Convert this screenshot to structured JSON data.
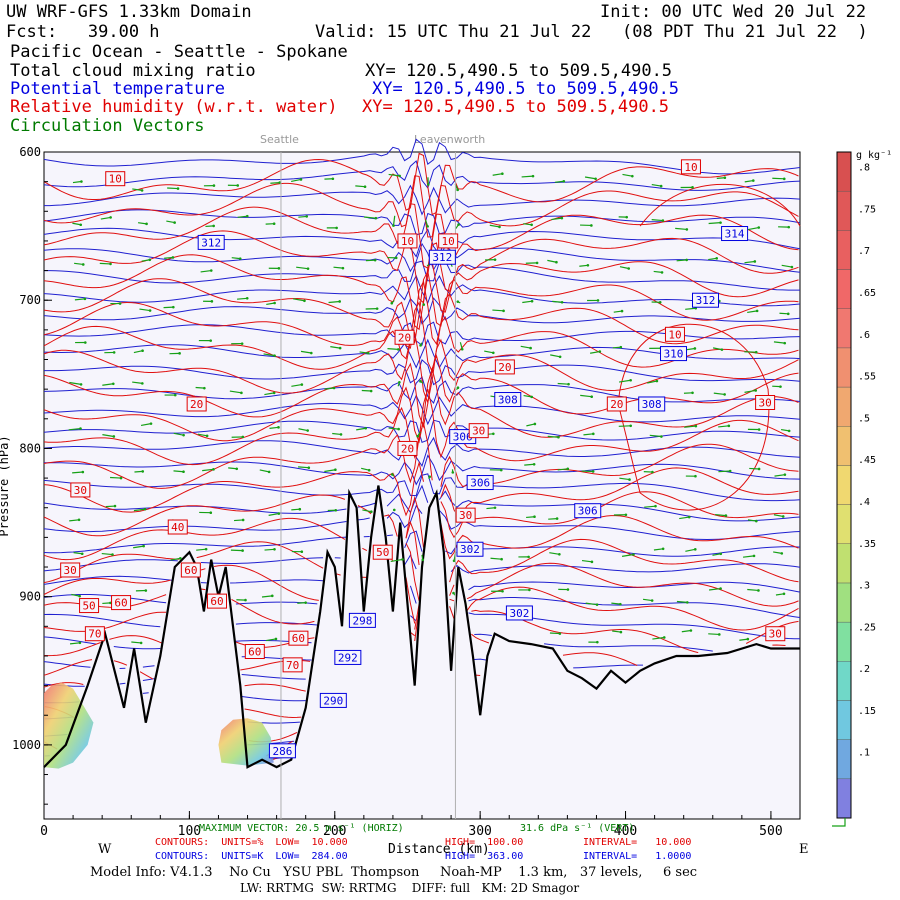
{
  "header": {
    "line1_left": "UW WRF-GFS 1.33km Domain",
    "line1_right": "Init: 00 UTC Wed 20 Jul 22",
    "line2_fcst": "Fcst:   39.00 h",
    "line2_valid": "Valid: 15 UTC Thu 21 Jul 22   (08 PDT Thu 21 Jul 22  )",
    "line3": "Pacific Ocean - Seattle - Spokane",
    "fields": [
      {
        "label": "Total cloud mixing ratio",
        "xy": "XY= 120.5,490.5 to 509.5,490.5",
        "color": "#000000"
      },
      {
        "label": "Potential temperature",
        "xy": "XY= 120.5,490.5 to 509.5,490.5",
        "color": "#0000e0"
      },
      {
        "label": "Relative humidity (w.r.t. water)",
        "xy": "XY= 120.5,490.5 to 509.5,490.5",
        "color": "#e00000"
      },
      {
        "label": "Circulation Vectors",
        "xy": "",
        "color": "#007a00"
      }
    ]
  },
  "locations": {
    "seattle": "Seattle",
    "leavenworth": "Leavenworth"
  },
  "footer": {
    "max_vector": "MAXIMUM VECTOR: 20.5 m s⁻¹ (HORIZ)",
    "max_vector_vert": "31.6 dPa s⁻¹ (VERT)",
    "rh_contours": "CONTOURS:  UNITS=%  LOW=  10.000",
    "rh_high": "HIGH=  100.00",
    "rh_interval": "INTERVAL=   10.000",
    "th_contours": "CONTOURS:  UNITS=K  LOW=  284.00",
    "th_high": "HIGH=  363.00",
    "th_interval": "INTERVAL=   1.0000",
    "west": "W",
    "east": "E",
    "model_info": "Model Info: V4.1.3    No Cu   YSU PBL  Thompson     Noah-MP    1.3 km,   37 levels,     6 sec",
    "model_info2": "LW: RRTMG  SW: RRTMG    DIFF: full   KM: 2D Smagor"
  },
  "chart_data": {
    "type": "cross-section",
    "xlabel": "Distance (km)",
    "ylabel": "Pressure (hPa)",
    "xlim": [
      0,
      520
    ],
    "ylim": [
      1050,
      600
    ],
    "x_ticks": [
      0,
      100,
      200,
      300,
      400,
      500
    ],
    "y_ticks": [
      600,
      700,
      800,
      900,
      1000
    ],
    "x_tick_labels": [
      "0",
      "100",
      "200",
      "300",
      "400",
      "500"
    ],
    "y_tick_labels": [
      "600",
      "700",
      "800",
      "900",
      "1000"
    ],
    "colorbar": {
      "units": "g kg⁻¹",
      "levels": [
        0.05,
        0.1,
        0.15,
        0.2,
        0.25,
        0.3,
        0.35,
        0.4,
        0.45,
        0.5,
        0.55,
        0.6,
        0.65,
        0.7,
        0.75,
        0.8
      ],
      "labels": [
        ".1",
        ".15",
        ".2",
        ".25",
        ".3",
        ".35",
        ".4",
        ".45",
        ".5",
        ".55",
        ".6",
        ".65",
        ".7",
        ".75",
        ".8"
      ]
    },
    "reference_lines": [
      {
        "name": "Seattle",
        "x": 163
      },
      {
        "name": "Leavenworth",
        "x": 283
      }
    ],
    "terrain_x": [
      0,
      15,
      30,
      42,
      55,
      62,
      70,
      80,
      90,
      100,
      105,
      110,
      115,
      120,
      125,
      135,
      140,
      150,
      160,
      170,
      180,
      190,
      195,
      200,
      205,
      210,
      215,
      220,
      225,
      230,
      235,
      240,
      245,
      250,
      255,
      260,
      265,
      270,
      275,
      280,
      285,
      290,
      295,
      300,
      305,
      310,
      320,
      335,
      350,
      360,
      370,
      380,
      390,
      400,
      410,
      420,
      435,
      450,
      470,
      490,
      500,
      510,
      520
    ],
    "terrain_hpa": [
      1015,
      1000,
      960,
      925,
      975,
      935,
      985,
      940,
      880,
      870,
      880,
      910,
      875,
      900,
      880,
      960,
      1015,
      1010,
      1015,
      1010,
      975,
      910,
      870,
      880,
      920,
      830,
      840,
      910,
      860,
      825,
      860,
      910,
      850,
      905,
      960,
      880,
      840,
      830,
      870,
      950,
      880,
      905,
      940,
      980,
      940,
      925,
      930,
      932,
      935,
      950,
      955,
      962,
      950,
      958,
      950,
      945,
      940,
      940,
      938,
      932,
      935,
      935,
      935
    ],
    "theta_contour_labels": [
      {
        "value": "312",
        "x": 115,
        "hpa": 661
      },
      {
        "value": "312",
        "x": 274,
        "hpa": 671
      },
      {
        "value": "312",
        "x": 455,
        "hpa": 700
      },
      {
        "value": "314",
        "x": 475,
        "hpa": 655
      },
      {
        "value": "310",
        "x": 433,
        "hpa": 736
      },
      {
        "value": "308",
        "x": 319,
        "hpa": 767
      },
      {
        "value": "308",
        "x": 418,
        "hpa": 770
      },
      {
        "value": "306",
        "x": 288,
        "hpa": 792
      },
      {
        "value": "306",
        "x": 300,
        "hpa": 823
      },
      {
        "value": "306",
        "x": 374,
        "hpa": 842
      },
      {
        "value": "302",
        "x": 293,
        "hpa": 868
      },
      {
        "value": "302",
        "x": 327,
        "hpa": 911
      },
      {
        "value": "298",
        "x": 219,
        "hpa": 916
      },
      {
        "value": "292",
        "x": 209,
        "hpa": 941
      },
      {
        "value": "290",
        "x": 199,
        "hpa": 970
      },
      {
        "value": "286",
        "x": 164,
        "hpa": 1004
      }
    ],
    "rh_contour_labels": [
      {
        "value": "10",
        "x": 49,
        "hpa": 618
      },
      {
        "value": "10",
        "x": 445,
        "hpa": 610
      },
      {
        "value": "10",
        "x": 250,
        "hpa": 660
      },
      {
        "value": "10",
        "x": 278,
        "hpa": 660
      },
      {
        "value": "10",
        "x": 434,
        "hpa": 723
      },
      {
        "value": "20",
        "x": 248,
        "hpa": 725
      },
      {
        "value": "20",
        "x": 317,
        "hpa": 745
      },
      {
        "value": "20",
        "x": 105,
        "hpa": 770
      },
      {
        "value": "20",
        "x": 394,
        "hpa": 770
      },
      {
        "value": "20",
        "x": 250,
        "hpa": 800
      },
      {
        "value": "30",
        "x": 496,
        "hpa": 769
      },
      {
        "value": "30",
        "x": 299,
        "hpa": 788
      },
      {
        "value": "30",
        "x": 25,
        "hpa": 828
      },
      {
        "value": "30",
        "x": 290,
        "hpa": 845
      },
      {
        "value": "30",
        "x": 18,
        "hpa": 882
      },
      {
        "value": "40",
        "x": 92,
        "hpa": 853
      },
      {
        "value": "50",
        "x": 233,
        "hpa": 870
      },
      {
        "value": "50",
        "x": 31,
        "hpa": 906
      },
      {
        "value": "60",
        "x": 101,
        "hpa": 882
      },
      {
        "value": "60",
        "x": 53,
        "hpa": 904
      },
      {
        "value": "60",
        "x": 119,
        "hpa": 903
      },
      {
        "value": "60",
        "x": 145,
        "hpa": 937
      },
      {
        "value": "60",
        "x": 175,
        "hpa": 928
      },
      {
        "value": "70",
        "x": 35,
        "hpa": 925
      },
      {
        "value": "70",
        "x": 171,
        "hpa": 946
      },
      {
        "value": "30",
        "x": 503,
        "hpa": 925
      }
    ]
  }
}
